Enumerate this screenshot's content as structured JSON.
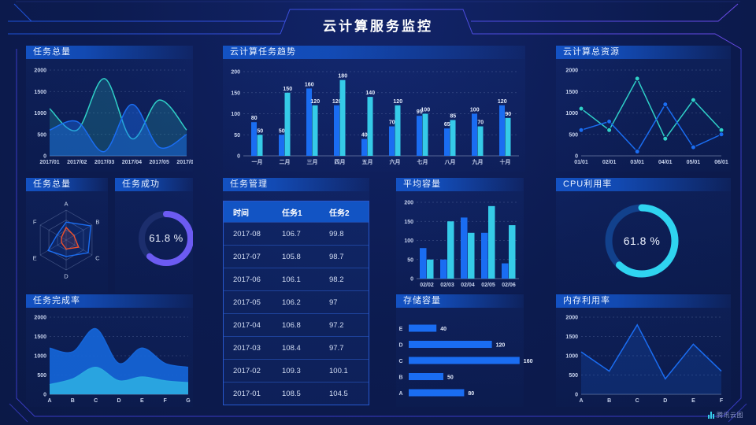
{
  "title": "云计算服务监控",
  "watermark": "腾讯云图",
  "colors": {
    "blue": "#1a6df2",
    "cyan": "#35cbe8",
    "teal": "#2fd0c8",
    "purple": "#6c5bf2",
    "donut_cyan": "#2fd4f0",
    "orange": "#f0512c",
    "royal": "#1565d8",
    "sky": "#2aa8e0",
    "background": "#0c1b4f",
    "header_blue": "#1355c8"
  },
  "panels": {
    "task_total_top": {
      "title": "任务总量",
      "chart_data": {
        "type": "area",
        "x": [
          "2017/01",
          "2017/02",
          "2017/03",
          "2017/04",
          "2017/05",
          "2017/06"
        ],
        "series": [
          {
            "color": "teal",
            "values": [
              1100,
              600,
              1800,
              400,
              1300,
              600
            ]
          },
          {
            "color": "blue",
            "values": [
              600,
              800,
              100,
              1200,
              200,
              500
            ]
          }
        ],
        "ylim": [
          0,
          2000
        ],
        "yticks": [
          0,
          500,
          1000,
          1500,
          2000
        ],
        "smooth": true
      }
    },
    "task_trend": {
      "title": "云计算任务趋势",
      "chart_data": {
        "type": "bar",
        "categories": [
          "一月",
          "二月",
          "三月",
          "四月",
          "五月",
          "六月",
          "七月",
          "八月",
          "九月",
          "十月"
        ],
        "series": [
          {
            "color": "blue",
            "values": [
              80,
              50,
              160,
              120,
              40,
              70,
              95,
              65,
              100,
              120
            ]
          },
          {
            "color": "cyan",
            "values": [
              50,
              150,
              120,
              180,
              140,
              120,
              100,
              85,
              70,
              90
            ]
          }
        ],
        "ylim": [
          0,
          200
        ],
        "yticks": [
          0,
          50,
          100,
          150,
          200
        ],
        "show_values": true
      }
    },
    "cloud_resources": {
      "title": "云计算总资源",
      "chart_data": {
        "type": "line",
        "x": [
          "01/01",
          "02/01",
          "03/01",
          "04/01",
          "05/01",
          "06/01"
        ],
        "series": [
          {
            "color": "teal",
            "values": [
              1100,
              600,
              1800,
              400,
              1300,
              600
            ]
          },
          {
            "color": "blue",
            "values": [
              600,
              800,
              100,
              1200,
              200,
              500
            ]
          }
        ],
        "ylim": [
          0,
          2000
        ],
        "yticks": [
          0,
          500,
          1000,
          1500,
          2000
        ],
        "markers": true
      }
    },
    "task_total_radar": {
      "title": "任务总量",
      "chart_data": {
        "type": "radar",
        "indicators": [
          "A",
          "B",
          "C",
          "D",
          "E",
          "F"
        ],
        "max": 100,
        "series": [
          {
            "color": "blue",
            "values": [
              60,
              95,
              85,
              55,
              70,
              35
            ]
          },
          {
            "color": "orange",
            "values": [
              42,
              30,
              48,
              30,
              18,
              18
            ]
          }
        ]
      }
    },
    "task_success": {
      "title": "任务成功",
      "chart_data": {
        "type": "donut",
        "value": 61.8,
        "display": "61.8 %",
        "color": "purple"
      }
    },
    "task_management": {
      "title": "任务管理",
      "table": {
        "columns": [
          "时间",
          "任务1",
          "任务2"
        ],
        "rows": [
          [
            "2017-08",
            "106.7",
            "99.8"
          ],
          [
            "2017-07",
            "105.8",
            "98.7"
          ],
          [
            "2017-06",
            "106.1",
            "98.2"
          ],
          [
            "2017-05",
            "106.2",
            "97"
          ],
          [
            "2017-04",
            "106.8",
            "97.2"
          ],
          [
            "2017-03",
            "108.4",
            "97.7"
          ],
          [
            "2017-02",
            "109.3",
            "100.1"
          ],
          [
            "2017-01",
            "108.5",
            "104.5"
          ]
        ]
      }
    },
    "avg_capacity": {
      "title": "平均容量",
      "chart_data": {
        "type": "bar",
        "categories": [
          "02/02",
          "02/03",
          "02/04",
          "02/05",
          "02/06"
        ],
        "series": [
          {
            "color": "blue",
            "values": [
              80,
              50,
              160,
              120,
              40
            ]
          },
          {
            "color": "cyan",
            "values": [
              50,
              150,
              120,
              190,
              140
            ]
          }
        ],
        "ylim": [
          0,
          200
        ],
        "yticks": [
          0,
          50,
          100,
          150,
          200
        ],
        "show_values": false
      }
    },
    "cpu_usage": {
      "title": "CPU利用率",
      "chart_data": {
        "type": "donut",
        "value": 61.8,
        "display": "61.8 %",
        "color": "donut_cyan"
      }
    },
    "task_completion": {
      "title": "任务完成率",
      "chart_data": {
        "type": "area",
        "x": [
          "A",
          "B",
          "C",
          "D",
          "E",
          "F",
          "G"
        ],
        "series": [
          {
            "color": "royal",
            "values": [
              1200,
              1100,
              1700,
              800,
              1200,
              800,
              700
            ]
          },
          {
            "color": "sky",
            "values": [
              250,
              400,
              700,
              350,
              450,
              350,
              300
            ]
          }
        ],
        "ylim": [
          0,
          2000
        ],
        "yticks": [
          0,
          500,
          1000,
          1500,
          2000
        ],
        "smooth": true
      }
    },
    "storage_capacity": {
      "title": "存储容量",
      "chart_data": {
        "type": "hbar",
        "categories": [
          "E",
          "D",
          "C",
          "B",
          "A"
        ],
        "values": [
          40,
          120,
          160,
          50,
          80
        ],
        "xmax": 160
      }
    },
    "memory_usage": {
      "title": "内存利用率",
      "chart_data": {
        "type": "line",
        "x": [
          "A",
          "B",
          "C",
          "D",
          "E",
          "F"
        ],
        "series": [
          {
            "color": "blue",
            "values": [
              1100,
              600,
              1800,
              400,
              1300,
              600
            ]
          }
        ],
        "ylim": [
          0,
          2000
        ],
        "yticks": [
          0,
          500,
          1000,
          1500,
          2000
        ],
        "markers": false
      }
    }
  }
}
